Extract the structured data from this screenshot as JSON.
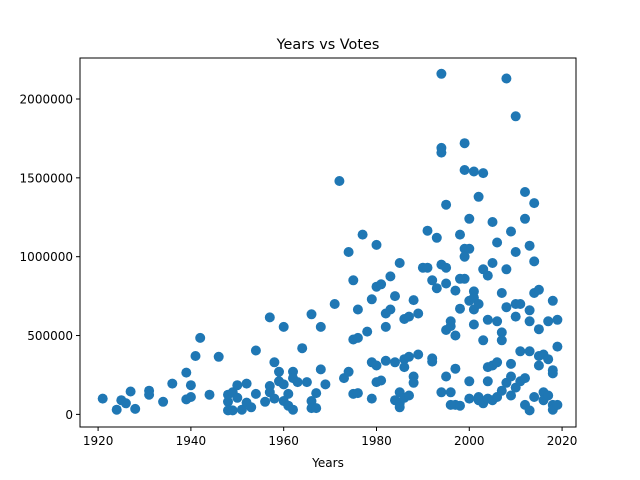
{
  "chart_data": {
    "type": "scatter",
    "title": "Years vs Votes",
    "xlabel": "Years",
    "ylabel": "",
    "xlim": [
      1916.1,
      2023.0
    ],
    "ylim": [
      -80000,
      2260000
    ],
    "xticks": [
      1920,
      1940,
      1960,
      1980,
      2000,
      2020
    ],
    "xtick_labels": [
      "1920",
      "1940",
      "1960",
      "1980",
      "2000",
      "2020"
    ],
    "yticks": [
      0,
      500000,
      1000000,
      1500000,
      2000000
    ],
    "ytick_labels": [
      "0",
      "500000",
      "1000000",
      "1500000",
      "2000000"
    ],
    "grid": false,
    "legend": "none",
    "color": "#1f77b4",
    "points": [
      [
        1921,
        100000
      ],
      [
        1924,
        30000
      ],
      [
        1925,
        90000
      ],
      [
        1926,
        70000
      ],
      [
        1927,
        145000
      ],
      [
        1928,
        35000
      ],
      [
        1931,
        150000
      ],
      [
        1931,
        125000
      ],
      [
        1934,
        80000
      ],
      [
        1936,
        195000
      ],
      [
        1939,
        265000
      ],
      [
        1939,
        95000
      ],
      [
        1940,
        185000
      ],
      [
        1940,
        110000
      ],
      [
        1941,
        370000
      ],
      [
        1942,
        485000
      ],
      [
        1944,
        125000
      ],
      [
        1946,
        365000
      ],
      [
        1948,
        80000
      ],
      [
        1948,
        25000
      ],
      [
        1948,
        125000
      ],
      [
        1949,
        140000
      ],
      [
        1949,
        25000
      ],
      [
        1950,
        185000
      ],
      [
        1950,
        105000
      ],
      [
        1951,
        30000
      ],
      [
        1952,
        75000
      ],
      [
        1952,
        195000
      ],
      [
        1953,
        45000
      ],
      [
        1954,
        405000
      ],
      [
        1954,
        130000
      ],
      [
        1956,
        80000
      ],
      [
        1957,
        615000
      ],
      [
        1957,
        180000
      ],
      [
        1957,
        140000
      ],
      [
        1958,
        330000
      ],
      [
        1958,
        100000
      ],
      [
        1959,
        270000
      ],
      [
        1959,
        210000
      ],
      [
        1960,
        190000
      ],
      [
        1960,
        85000
      ],
      [
        1960,
        555000
      ],
      [
        1961,
        130000
      ],
      [
        1961,
        55000
      ],
      [
        1962,
        270000
      ],
      [
        1962,
        30000
      ],
      [
        1962,
        230000
      ],
      [
        1963,
        205000
      ],
      [
        1964,
        420000
      ],
      [
        1965,
        205000
      ],
      [
        1966,
        635000
      ],
      [
        1966,
        85000
      ],
      [
        1966,
        40000
      ],
      [
        1967,
        40000
      ],
      [
        1967,
        135000
      ],
      [
        1968,
        285000
      ],
      [
        1968,
        555000
      ],
      [
        1969,
        190000
      ],
      [
        1971,
        700000
      ],
      [
        1972,
        1480000
      ],
      [
        1973,
        230000
      ],
      [
        1974,
        1030000
      ],
      [
        1974,
        270000
      ],
      [
        1975,
        850000
      ],
      [
        1975,
        475000
      ],
      [
        1975,
        130000
      ],
      [
        1976,
        665000
      ],
      [
        1976,
        135000
      ],
      [
        1976,
        485000
      ],
      [
        1977,
        1140000
      ],
      [
        1978,
        525000
      ],
      [
        1979,
        330000
      ],
      [
        1979,
        730000
      ],
      [
        1979,
        100000
      ],
      [
        1980,
        1075000
      ],
      [
        1980,
        810000
      ],
      [
        1980,
        310000
      ],
      [
        1980,
        205000
      ],
      [
        1981,
        825000
      ],
      [
        1981,
        215000
      ],
      [
        1982,
        340000
      ],
      [
        1982,
        555000
      ],
      [
        1982,
        640000
      ],
      [
        1983,
        875000
      ],
      [
        1983,
        665000
      ],
      [
        1984,
        750000
      ],
      [
        1984,
        330000
      ],
      [
        1984,
        90000
      ],
      [
        1985,
        960000
      ],
      [
        1985,
        140000
      ],
      [
        1985,
        70000
      ],
      [
        1985,
        45000
      ],
      [
        1986,
        605000
      ],
      [
        1986,
        350000
      ],
      [
        1986,
        300000
      ],
      [
        1986,
        105000
      ],
      [
        1987,
        365000
      ],
      [
        1987,
        620000
      ],
      [
        1987,
        120000
      ],
      [
        1988,
        725000
      ],
      [
        1988,
        240000
      ],
      [
        1988,
        200000
      ],
      [
        1989,
        640000
      ],
      [
        1989,
        380000
      ],
      [
        1990,
        930000
      ],
      [
        1991,
        1165000
      ],
      [
        1991,
        930000
      ],
      [
        1992,
        850000
      ],
      [
        1992,
        355000
      ],
      [
        1992,
        335000
      ],
      [
        1993,
        800000
      ],
      [
        1993,
        1120000
      ],
      [
        1994,
        2160000
      ],
      [
        1994,
        1690000
      ],
      [
        1994,
        1660000
      ],
      [
        1994,
        950000
      ],
      [
        1994,
        140000
      ],
      [
        1995,
        1330000
      ],
      [
        1995,
        930000
      ],
      [
        1995,
        830000
      ],
      [
        1995,
        535000
      ],
      [
        1995,
        240000
      ],
      [
        1996,
        590000
      ],
      [
        1996,
        560000
      ],
      [
        1996,
        140000
      ],
      [
        1996,
        60000
      ],
      [
        1997,
        785000
      ],
      [
        1997,
        290000
      ],
      [
        1997,
        60000
      ],
      [
        1997,
        500000
      ],
      [
        1998,
        1140000
      ],
      [
        1998,
        860000
      ],
      [
        1998,
        670000
      ],
      [
        1998,
        55000
      ],
      [
        1999,
        1720000
      ],
      [
        1999,
        1550000
      ],
      [
        1999,
        1050000
      ],
      [
        1999,
        1000000
      ],
      [
        1999,
        860000
      ],
      [
        2000,
        1240000
      ],
      [
        2000,
        1050000
      ],
      [
        2000,
        720000
      ],
      [
        2000,
        210000
      ],
      [
        2000,
        100000
      ],
      [
        2001,
        1540000
      ],
      [
        2001,
        780000
      ],
      [
        2001,
        740000
      ],
      [
        2001,
        665000
      ],
      [
        2001,
        570000
      ],
      [
        2002,
        1380000
      ],
      [
        2002,
        700000
      ],
      [
        2002,
        110000
      ],
      [
        2002,
        90000
      ],
      [
        2003,
        1530000
      ],
      [
        2003,
        920000
      ],
      [
        2003,
        470000
      ],
      [
        2003,
        70000
      ],
      [
        2004,
        880000
      ],
      [
        2004,
        600000
      ],
      [
        2004,
        300000
      ],
      [
        2004,
        210000
      ],
      [
        2004,
        100000
      ],
      [
        2005,
        1220000
      ],
      [
        2005,
        960000
      ],
      [
        2005,
        310000
      ],
      [
        2005,
        90000
      ],
      [
        2006,
        1090000
      ],
      [
        2006,
        590000
      ],
      [
        2006,
        330000
      ],
      [
        2006,
        110000
      ],
      [
        2007,
        770000
      ],
      [
        2007,
        520000
      ],
      [
        2007,
        470000
      ],
      [
        2007,
        150000
      ],
      [
        2008,
        2130000
      ],
      [
        2008,
        920000
      ],
      [
        2008,
        680000
      ],
      [
        2008,
        200000
      ],
      [
        2009,
        1160000
      ],
      [
        2009,
        320000
      ],
      [
        2009,
        240000
      ],
      [
        2009,
        120000
      ],
      [
        2010,
        1890000
      ],
      [
        2010,
        1030000
      ],
      [
        2010,
        700000
      ],
      [
        2010,
        620000
      ],
      [
        2010,
        170000
      ],
      [
        2011,
        700000
      ],
      [
        2011,
        400000
      ],
      [
        2011,
        210000
      ],
      [
        2012,
        1410000
      ],
      [
        2012,
        1240000
      ],
      [
        2012,
        230000
      ],
      [
        2012,
        60000
      ],
      [
        2013,
        1070000
      ],
      [
        2013,
        660000
      ],
      [
        2013,
        590000
      ],
      [
        2013,
        400000
      ],
      [
        2013,
        25000
      ],
      [
        2014,
        1340000
      ],
      [
        2014,
        970000
      ],
      [
        2014,
        770000
      ],
      [
        2014,
        110000
      ],
      [
        2015,
        790000
      ],
      [
        2015,
        540000
      ],
      [
        2015,
        370000
      ],
      [
        2015,
        310000
      ],
      [
        2016,
        380000
      ],
      [
        2016,
        140000
      ],
      [
        2016,
        90000
      ],
      [
        2017,
        590000
      ],
      [
        2017,
        350000
      ],
      [
        2017,
        120000
      ],
      [
        2018,
        720000
      ],
      [
        2018,
        280000
      ],
      [
        2018,
        260000
      ],
      [
        2018,
        60000
      ],
      [
        2018,
        30000
      ],
      [
        2019,
        600000
      ],
      [
        2019,
        430000
      ],
      [
        2019,
        60000
      ]
    ]
  }
}
